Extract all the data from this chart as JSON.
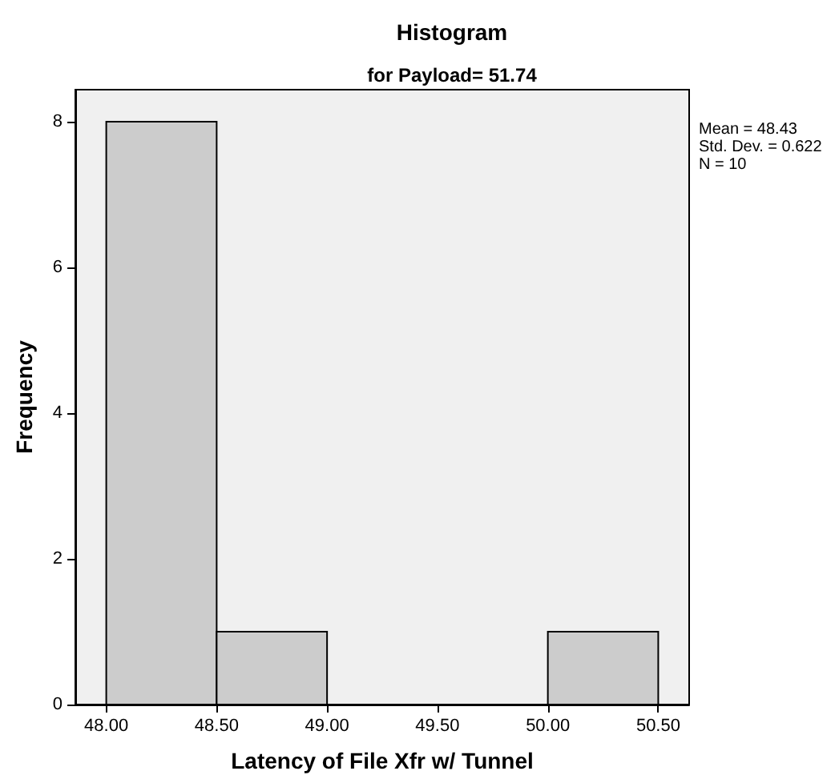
{
  "chart_data": {
    "type": "histogram",
    "title": "Histogram",
    "subtitle": "for Payload= 51.74",
    "xlabel": "Latency of File Xfr w/ Tunnel",
    "ylabel": "Frequency",
    "bins": [
      48.0,
      48.5,
      49.0,
      49.5,
      50.0,
      50.5
    ],
    "values": [
      8,
      1,
      0,
      0,
      1
    ],
    "color": "#cccccc",
    "xlim": [
      47.86,
      50.64
    ],
    "xticks": [
      {
        "value": 48.0,
        "label": "48.00"
      },
      {
        "value": 48.5,
        "label": "48.50"
      },
      {
        "value": 49.0,
        "label": "49.00"
      },
      {
        "value": 49.5,
        "label": "49.50"
      },
      {
        "value": 50.0,
        "label": "50.00"
      },
      {
        "value": 50.5,
        "label": "50.50"
      }
    ],
    "ylim": [
      0,
      8.44
    ],
    "yticks": [
      0,
      2,
      4,
      6,
      8
    ],
    "grid": false,
    "legend": false,
    "annotations": [
      "Mean = 48.43",
      "Std. Dev. = 0.622",
      "N = 10"
    ]
  }
}
